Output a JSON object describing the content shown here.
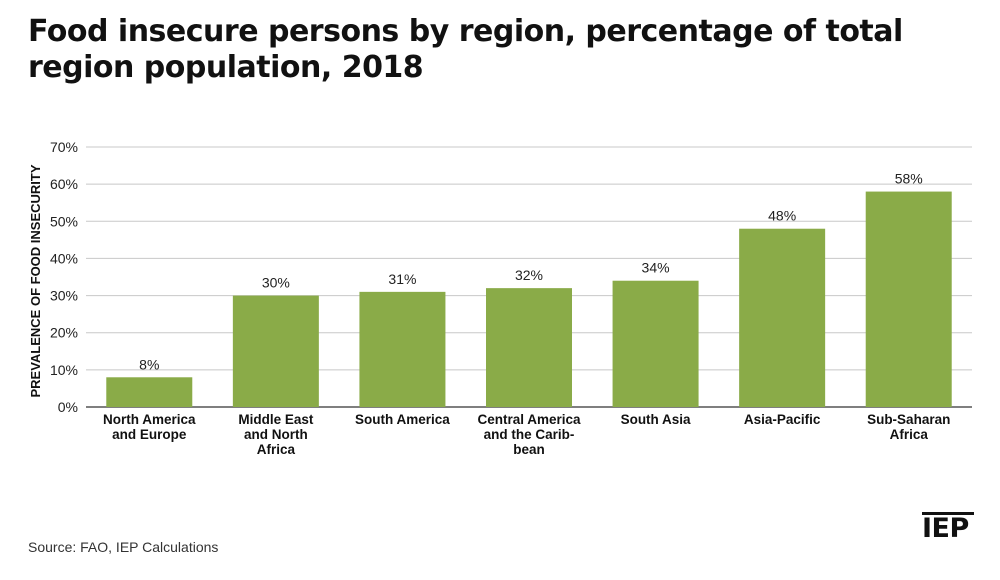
{
  "title": "Food insecure persons by region, percentage of total region population, 2018",
  "source": "Source: FAO, IEP Calculations",
  "logo_text": "IEP",
  "chart_data": {
    "type": "bar",
    "title": "Food insecure persons by region, percentage of total region population, 2018",
    "categories": [
      [
        "North America",
        "and Europe"
      ],
      [
        "Middle East",
        "and North",
        "Africa"
      ],
      [
        "South America"
      ],
      [
        "Central America",
        "and the Carib-",
        "bean"
      ],
      [
        "South Asia"
      ],
      [
        "Asia-Pacific"
      ],
      [
        "Sub-Saharan",
        "Africa"
      ]
    ],
    "values": [
      8,
      30,
      31,
      32,
      34,
      48,
      58
    ],
    "data_labels": [
      "8%",
      "30%",
      "31%",
      "32%",
      "34%",
      "48%",
      "58%"
    ],
    "ylabel": "PREVALENCE OF FOOD INSECURITY",
    "ylim": [
      0,
      70
    ],
    "yticks": [
      "0%",
      "10%",
      "20%",
      "30%",
      "40%",
      "50%",
      "60%",
      "70%"
    ],
    "grid": true,
    "colors": {
      "bar": "#8aab48",
      "grid": "#c8c8c8",
      "axis": "#333333"
    }
  }
}
